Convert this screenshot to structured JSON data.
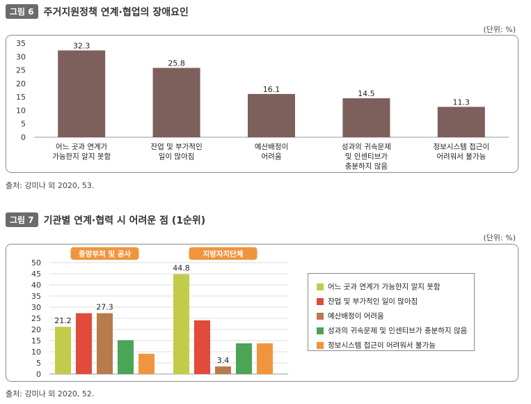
{
  "figure6": {
    "badge": "그림 6",
    "title": "주거지원정책 연계·협업의 장애요인",
    "unit": "(단위: %)",
    "source": "출처: 강미나 외 2020, 53."
  },
  "figure7": {
    "badge": "그림 7",
    "title": "기관별 연계·협력 시 어려운 점 (1순위)",
    "unit": "(단위: %)",
    "source": "출처: 강미나 외 2020, 52."
  },
  "chart_data": [
    {
      "type": "bar",
      "title": "주거지원정책 연계·협업의 장애요인",
      "categories": [
        [
          "어느 곳과 연계가",
          "가능한지 알지 못함"
        ],
        [
          "잔업 및 부가적인",
          "일이 많아짐"
        ],
        [
          "예산배정이",
          "어려움"
        ],
        [
          "성과의 귀속문제",
          "및 인센티브가",
          "충분하지 않음"
        ],
        [
          "정보시스템 접근이",
          "어려워서 불가능"
        ]
      ],
      "values": [
        32.3,
        25.8,
        16.1,
        14.5,
        11.3
      ],
      "ylim": [
        0,
        35
      ],
      "yticks": [
        0,
        5,
        10,
        15,
        20,
        25,
        30,
        35
      ],
      "color": "#7d5f5b",
      "grid": false
    },
    {
      "type": "bar",
      "title": "기관별 연계·협력 시 어려운 점 (1순위)",
      "groups": [
        "중앙부처 및 공사",
        "지방자치단체"
      ],
      "series": [
        {
          "name": "어느 곳과 연계가 가능한지 알지 못함",
          "color": "#c3cc4a",
          "values": [
            21.2,
            44.8
          ]
        },
        {
          "name": "잔업 및 부가적인 일이 많아짐",
          "color": "#e04b3a",
          "values": [
            27.3,
            24.1
          ]
        },
        {
          "name": "예산배정이 어려움",
          "color": "#b97a4c",
          "values": [
            27.3,
            3.4
          ]
        },
        {
          "name": "성과의 귀속문제 및 인센티브가 충분하지 않음",
          "color": "#4aa557",
          "values": [
            15.2,
            13.8
          ]
        },
        {
          "name": "정보시스템 접근이 어려워서 불가능",
          "color": "#f0953e",
          "values": [
            9.1,
            13.8
          ]
        }
      ],
      "data_labels": [
        {
          "series": 0,
          "group": 0,
          "text": "21.2"
        },
        {
          "series": 2,
          "group": 0,
          "text": "27.3"
        },
        {
          "series": 0,
          "group": 1,
          "text": "44.8"
        },
        {
          "series": 2,
          "group": 1,
          "text": "3.4"
        }
      ],
      "ylim": [
        0,
        50
      ],
      "yticks": [
        0,
        5,
        10,
        15,
        20,
        25,
        30,
        35,
        40,
        45,
        50
      ],
      "grid": true,
      "legend": "right",
      "group_label_color": "#f0953e"
    }
  ]
}
